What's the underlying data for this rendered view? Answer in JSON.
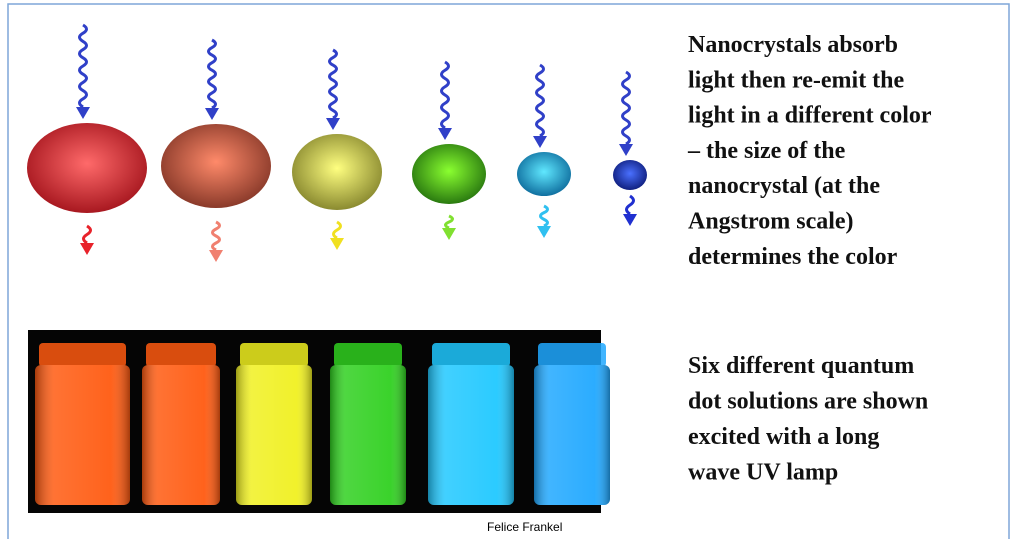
{
  "description": {
    "lines": [
      "Nanocrystals absorb",
      "light then re-emit the",
      "light in a different color",
      "– the size of the",
      "nanocrystal (at the",
      "Angstrom scale)",
      "determines the color"
    ]
  },
  "photo_caption": {
    "lines": [
      "Six different quantum",
      "dot solutions are shown",
      "excited with a long",
      "wave UV lamp"
    ]
  },
  "photo_credit": "Felice  Frankel"
}
